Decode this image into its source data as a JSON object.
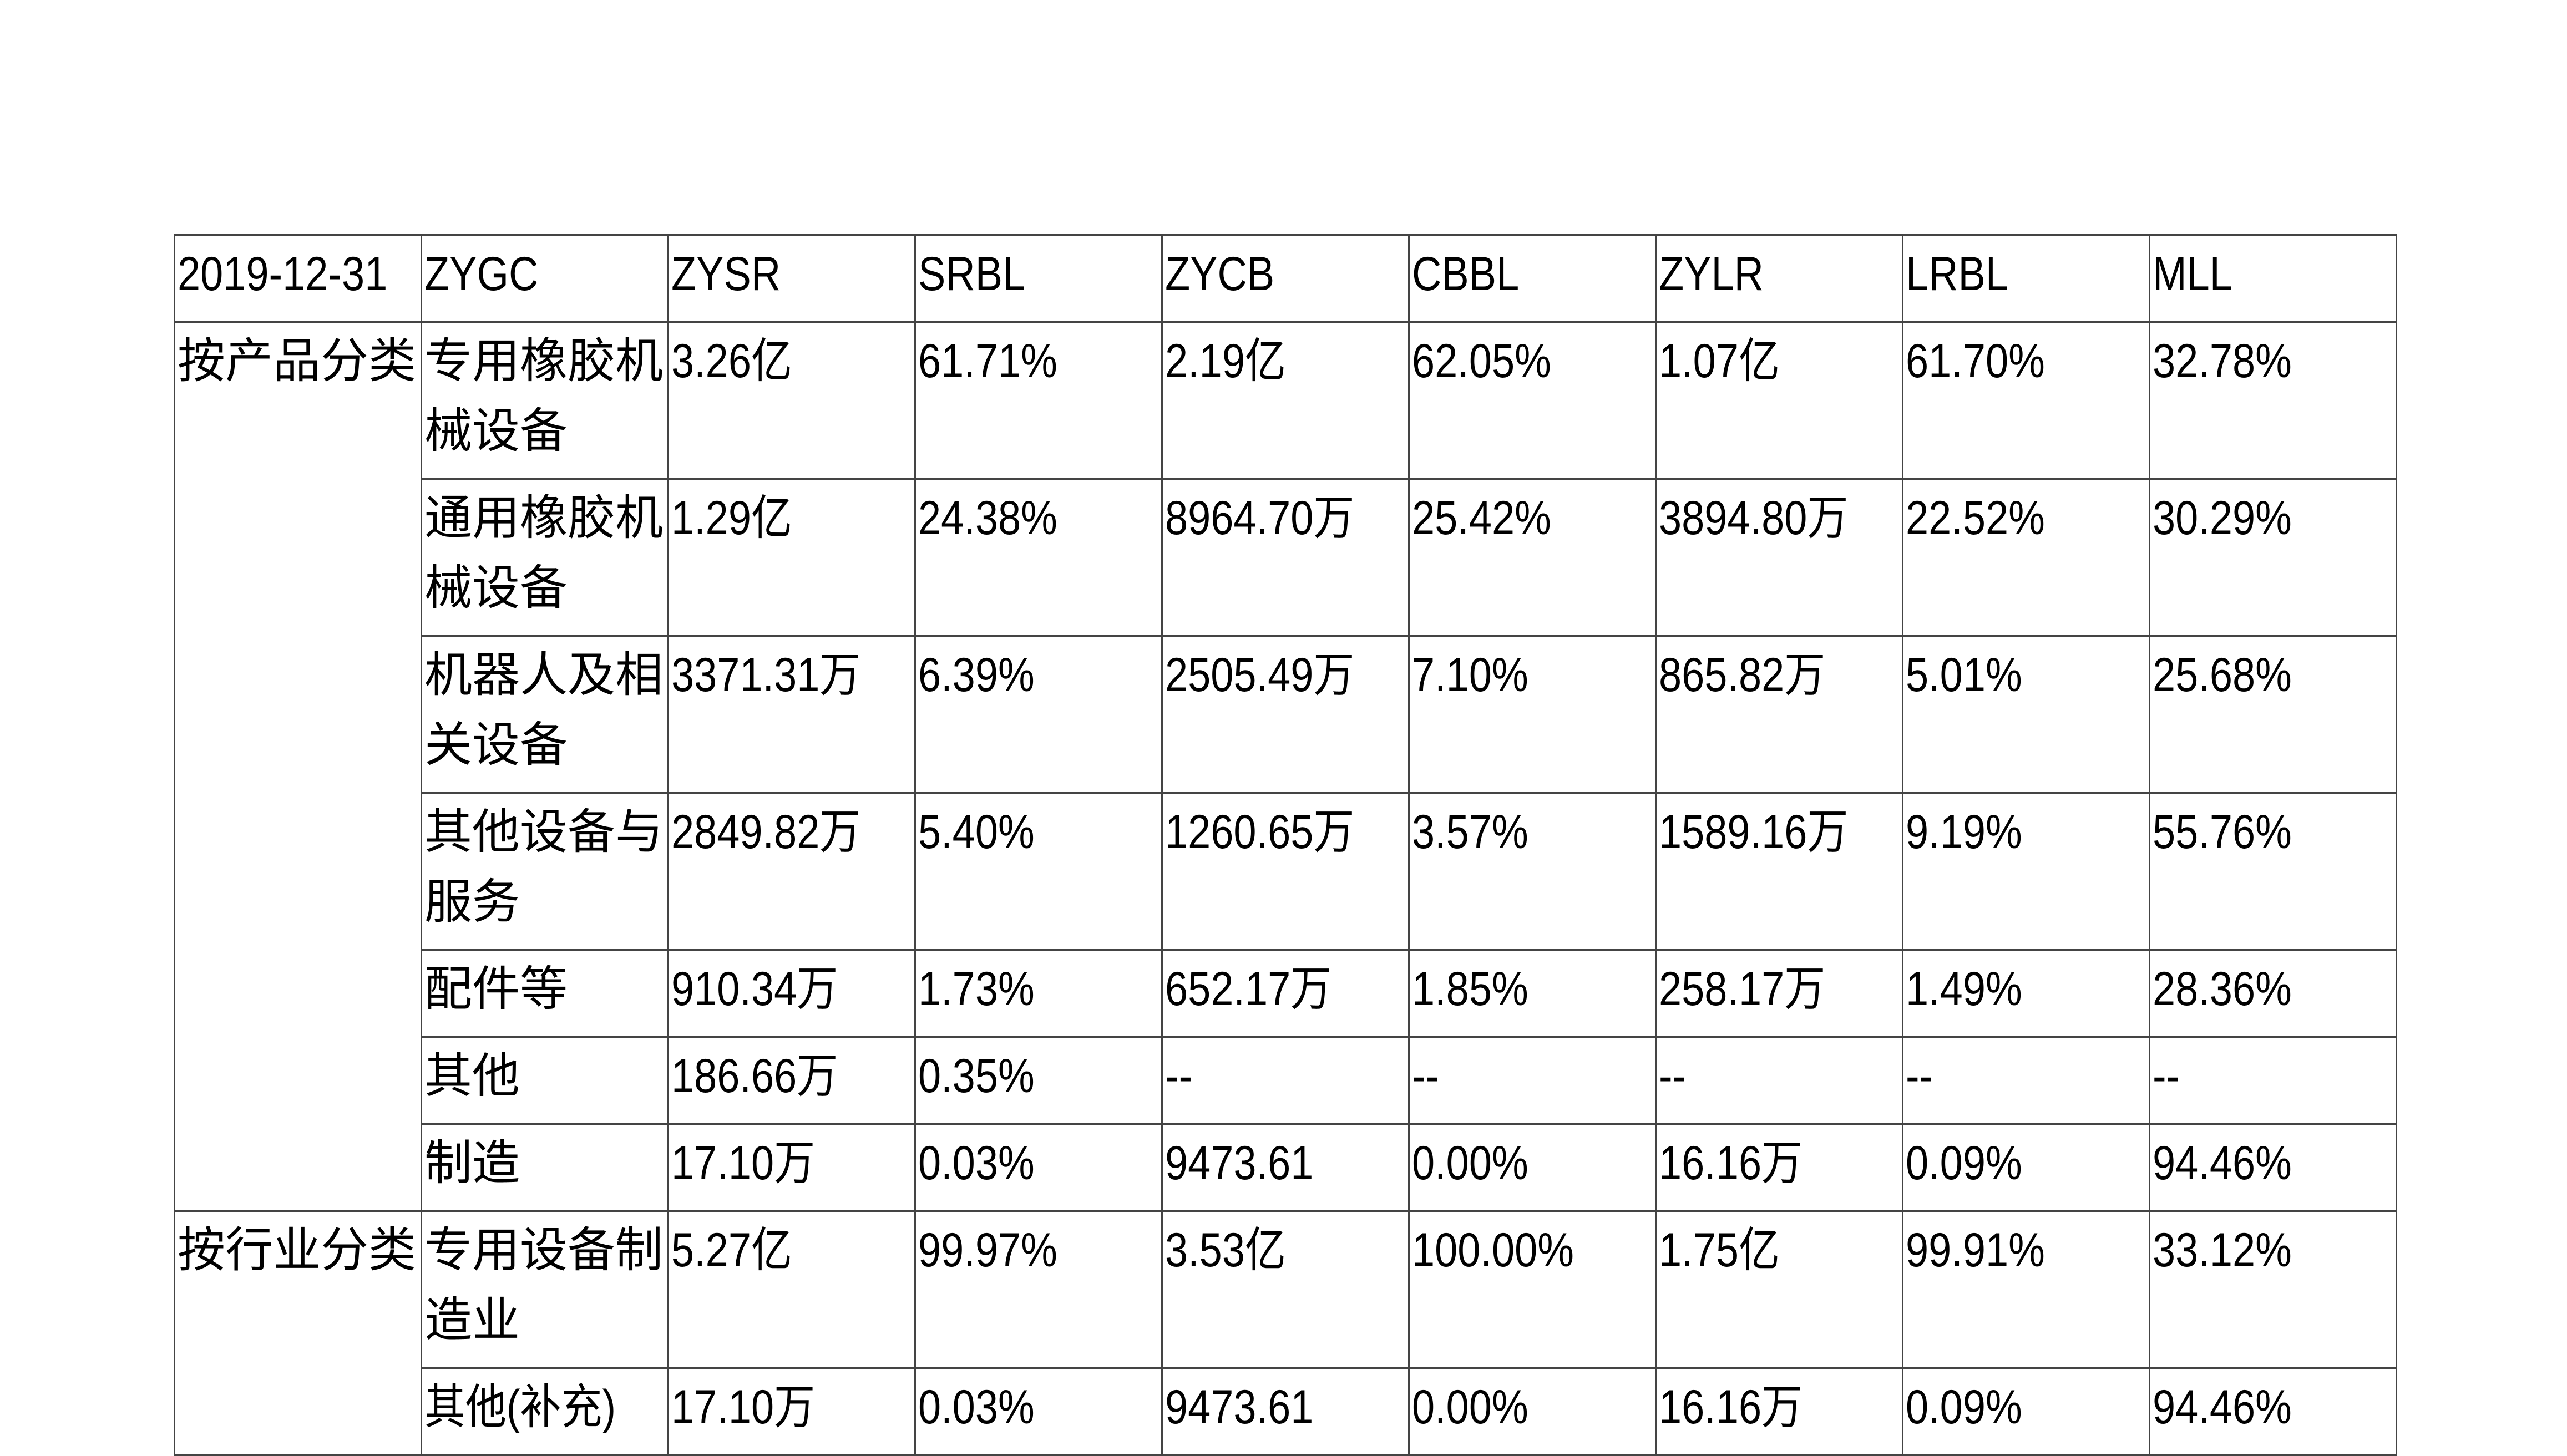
{
  "table": {
    "header": [
      "2019-12-31",
      "ZYGC",
      "ZYSR",
      "SRBL",
      "ZYCB",
      "CBBL",
      "ZYLR",
      "LRBL",
      "MLL"
    ],
    "groups": [
      {
        "label": "按产品分类",
        "rows": [
          [
            "专用橡胶机械设备",
            "3.26亿",
            "61.71%",
            "2.19亿",
            "62.05%",
            "1.07亿",
            "61.70%",
            "32.78%"
          ],
          [
            "通用橡胶机械设备",
            "1.29亿",
            "24.38%",
            "8964.70万",
            "25.42%",
            "3894.80万",
            "22.52%",
            "30.29%"
          ],
          [
            "机器人及相关设备",
            "3371.31万",
            "6.39%",
            "2505.49万",
            "7.10%",
            "865.82万",
            "5.01%",
            "25.68%"
          ],
          [
            "其他设备与服务",
            "2849.82万",
            "5.40%",
            "1260.65万",
            "3.57%",
            "1589.16万",
            "9.19%",
            "55.76%"
          ],
          [
            "配件等",
            "910.34万",
            "1.73%",
            "652.17万",
            "1.85%",
            "258.17万",
            "1.49%",
            "28.36%"
          ],
          [
            "其他",
            "186.66万",
            "0.35%",
            "--",
            "--",
            "--",
            "--",
            "--"
          ],
          [
            "制造",
            "17.10万",
            "0.03%",
            "9473.61",
            "0.00%",
            "16.16万",
            "0.09%",
            "94.46%"
          ]
        ]
      },
      {
        "label": "按行业分类",
        "rows": [
          [
            "专用设备制造业",
            "5.27亿",
            "99.97%",
            "3.53亿",
            "100.00%",
            "1.75亿",
            "99.91%",
            "33.12%"
          ],
          [
            "其他(补充)",
            "17.10万",
            "0.03%",
            "9473.61",
            "0.00%",
            "16.16万",
            "0.09%",
            "94.46%"
          ]
        ]
      }
    ]
  }
}
